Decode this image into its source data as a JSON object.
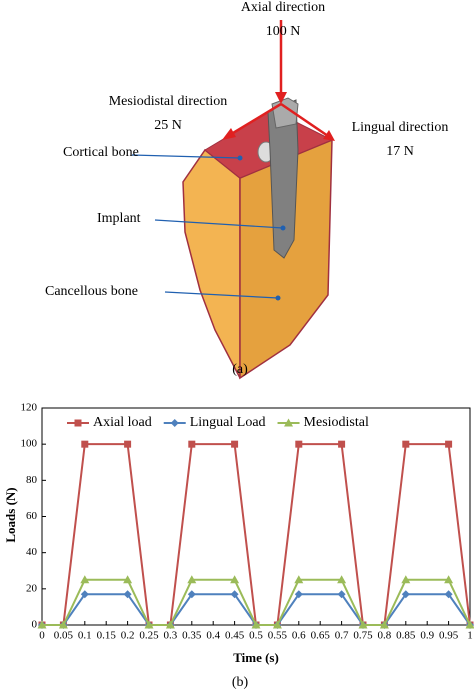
{
  "diagram": {
    "axial_label": "Axial direction",
    "axial_value": "100 N",
    "mesiodistal_label": "Mesiodistal direction",
    "mesiodistal_value": "25 N",
    "lingual_label": "Lingual direction",
    "lingual_value": "17 N",
    "cortical": "Cortical bone",
    "implant": "Implant",
    "cancellous": "Cancellous bone",
    "caption": "(a)"
  },
  "chart_data": {
    "type": "line",
    "xlabel": "Time (s)",
    "ylabel": "Loads (N)",
    "caption": "(b)",
    "x": [
      0,
      0.05,
      0.1,
      0.2,
      0.25,
      0.3,
      0.35,
      0.45,
      0.5,
      0.55,
      0.6,
      0.7,
      0.75,
      0.8,
      0.85,
      0.95,
      1
    ],
    "series": [
      {
        "name": "Axial load",
        "color": "#c0504d",
        "marker": "square",
        "values": [
          0,
          0,
          100,
          100,
          0,
          0,
          100,
          100,
          0,
          0,
          100,
          100,
          0,
          0,
          100,
          100,
          0
        ]
      },
      {
        "name": "Lingual Load",
        "color": "#4f81bd",
        "marker": "diamond",
        "values": [
          0,
          0,
          17,
          17,
          0,
          0,
          17,
          17,
          0,
          0,
          17,
          17,
          0,
          0,
          17,
          17,
          0
        ]
      },
      {
        "name": "Mesiodistal",
        "color": "#9bbb59",
        "marker": "triangle",
        "values": [
          0,
          0,
          25,
          25,
          0,
          0,
          25,
          25,
          0,
          0,
          25,
          25,
          0,
          0,
          25,
          25,
          0
        ]
      }
    ],
    "xlim": [
      0,
      1
    ],
    "xticks": [
      0,
      0.05,
      0.1,
      0.15,
      0.2,
      0.25,
      0.3,
      0.35,
      0.4,
      0.45,
      0.5,
      0.55,
      0.6,
      0.65,
      0.7,
      0.75,
      0.8,
      0.85,
      0.9,
      0.95,
      1
    ],
    "ylim": [
      0,
      120
    ],
    "yticks": [
      0,
      20,
      40,
      60,
      80,
      100,
      120
    ],
    "legend": "top"
  }
}
